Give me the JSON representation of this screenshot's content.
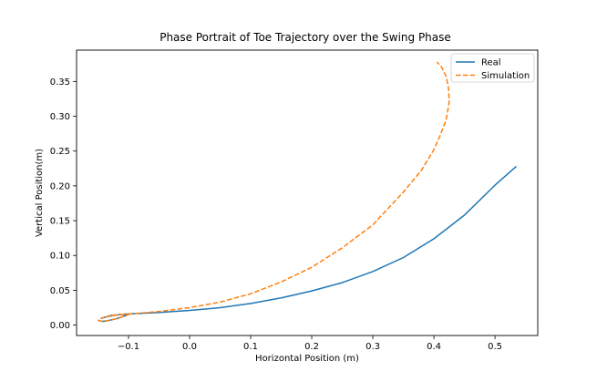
{
  "chart_data": {
    "type": "line",
    "title": "Phase Portrait of Toe Trajectory over the Swing Phase",
    "xlabel": "Horizontal Position (m)",
    "ylabel": "Vertical Position(m)",
    "xlim": [
      -0.185,
      0.57
    ],
    "ylim": [
      -0.015,
      0.395
    ],
    "xticks": [
      -0.1,
      0.0,
      0.1,
      0.2,
      0.3,
      0.4,
      0.5
    ],
    "xtick_labels": [
      "−0.1",
      "0.0",
      "0.1",
      "0.2",
      "0.3",
      "0.4",
      "0.5"
    ],
    "yticks": [
      0.0,
      0.05,
      0.1,
      0.15,
      0.2,
      0.25,
      0.3,
      0.35
    ],
    "ytick_labels": [
      "0.00",
      "0.05",
      "0.10",
      "0.15",
      "0.20",
      "0.25",
      "0.30",
      "0.35"
    ],
    "grid": false,
    "legend_position": "top-right",
    "series": [
      {
        "name": "Real",
        "color": "#1f77b4",
        "style": "solid",
        "x": [
          -0.15,
          -0.145,
          -0.14,
          -0.13,
          -0.12,
          -0.11,
          -0.1,
          -0.11,
          -0.12,
          -0.13,
          -0.14,
          -0.145,
          -0.13,
          -0.11,
          -0.09,
          -0.05,
          0.0,
          0.05,
          0.1,
          0.15,
          0.2,
          0.25,
          0.3,
          0.35,
          0.4,
          0.45,
          0.5,
          0.535
        ],
        "y": [
          0.007,
          0.0055,
          0.0055,
          0.007,
          0.009,
          0.012,
          0.015,
          0.0155,
          0.0145,
          0.013,
          0.011,
          0.0095,
          0.0135,
          0.0155,
          0.0165,
          0.018,
          0.021,
          0.025,
          0.031,
          0.039,
          0.049,
          0.061,
          0.077,
          0.097,
          0.124,
          0.158,
          0.201,
          0.228
        ]
      },
      {
        "name": "Simulation",
        "color": "#ff7f0e",
        "style": "dashed",
        "x": [
          -0.15,
          -0.145,
          -0.14,
          -0.13,
          -0.12,
          -0.11,
          -0.1,
          -0.11,
          -0.12,
          -0.13,
          -0.14,
          -0.145,
          -0.13,
          -0.11,
          -0.09,
          -0.05,
          0.0,
          0.05,
          0.1,
          0.15,
          0.2,
          0.25,
          0.3,
          0.35,
          0.38,
          0.4,
          0.41,
          0.42,
          0.425,
          0.424,
          0.42,
          0.413,
          0.405
        ],
        "y": [
          0.007,
          0.0055,
          0.0055,
          0.007,
          0.009,
          0.012,
          0.015,
          0.0155,
          0.0145,
          0.013,
          0.011,
          0.0095,
          0.0135,
          0.0155,
          0.0165,
          0.0195,
          0.025,
          0.033,
          0.045,
          0.062,
          0.083,
          0.111,
          0.144,
          0.191,
          0.223,
          0.252,
          0.272,
          0.295,
          0.32,
          0.34,
          0.357,
          0.37,
          0.378
        ]
      }
    ]
  }
}
